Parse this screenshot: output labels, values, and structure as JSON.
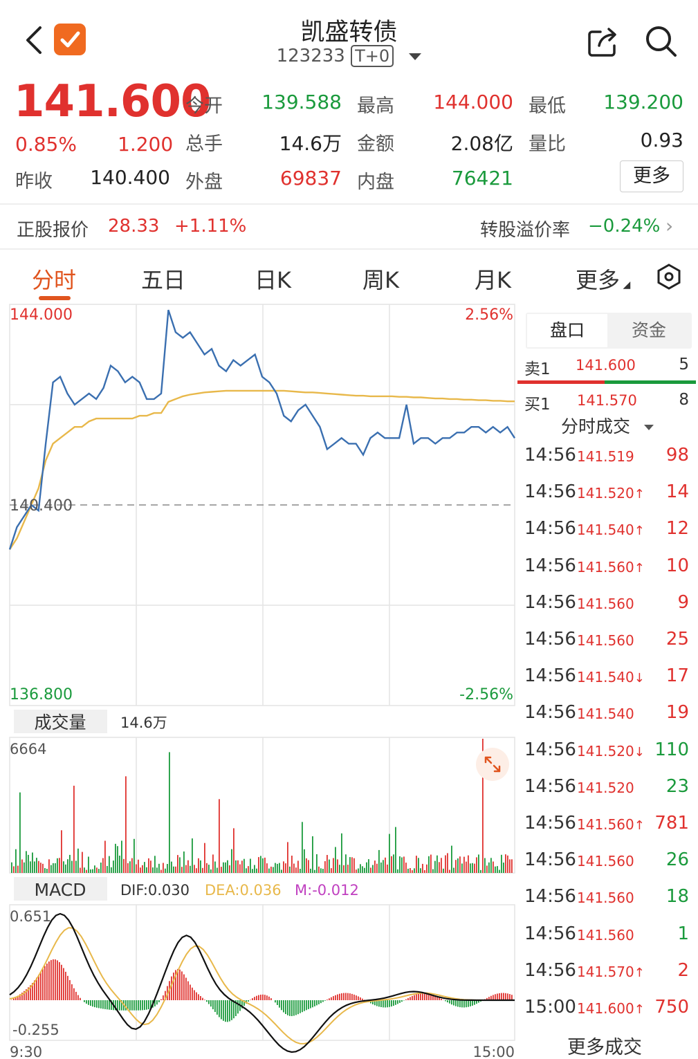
{
  "header": {
    "title": "凯盛转债",
    "code": "123233",
    "trade_mode": "T+0"
  },
  "quote": {
    "price": "141.600",
    "change_pct": "0.85%",
    "change": "1.200",
    "prev_close_label": "昨收",
    "prev_close": "140.400",
    "open_label": "今开",
    "open": "139.588",
    "high_label": "最高",
    "high": "144.000",
    "low_label": "最低",
    "low": "139.200",
    "volume_label": "总手",
    "volume": "14.6万",
    "amount_label": "金额",
    "amount": "2.08亿",
    "vol_ratio_label": "量比",
    "vol_ratio": "0.93",
    "outer_label": "外盘",
    "outer": "69837",
    "inner_label": "内盘",
    "inner": "76421",
    "more_label": "更多"
  },
  "stock_row": {
    "label": "正股报价",
    "price": "28.33",
    "pct": "+1.11%",
    "premium_label": "转股溢价率",
    "premium": "−0.24%"
  },
  "tabs": [
    "分时",
    "五日",
    "日K",
    "周K",
    "月K",
    "更多"
  ],
  "active_tab": 0,
  "chart": {
    "y_max": "144.000",
    "y_min": "136.800",
    "pct_max": "2.56%",
    "pct_min": "-2.56%",
    "ref_price": "140.400",
    "volume_title": "成交量",
    "volume_total": "14.6万",
    "volume_max": "6664",
    "macd_title": "MACD",
    "dif": "DIF:0.030",
    "dea": "DEA:0.036",
    "m": "M:-0.012",
    "macd_max": "0.651",
    "macd_min": "-0.255",
    "time_start": "9:30",
    "time_end": "15:00"
  },
  "chart_data": {
    "type": "line",
    "y_range": [
      136.8,
      144.0
    ],
    "reference": 140.4,
    "series": [
      {
        "values": [
          139.6,
          140.0,
          140.2,
          140.4,
          140.3,
          141.5,
          142.6,
          142.7,
          142.4,
          142.2,
          142.3,
          142.4,
          142.3,
          142.5,
          142.9,
          142.8,
          142.6,
          142.7,
          142.6,
          142.3,
          142.3,
          142.4,
          143.9,
          143.5,
          143.4,
          143.5,
          143.3,
          143.1,
          143.2,
          142.9,
          142.8,
          143.0,
          142.9,
          143.0,
          143.1,
          142.7,
          142.6,
          142.4,
          142.0,
          141.9,
          142.1,
          142.2,
          142.0,
          141.8,
          141.4,
          141.5,
          141.6,
          141.5,
          141.5,
          141.3,
          141.6,
          141.7,
          141.6,
          141.6,
          141.6,
          142.2,
          141.5,
          141.6,
          141.6,
          141.5,
          141.6,
          141.6,
          141.7,
          141.7,
          141.8,
          141.8,
          141.7,
          141.8,
          141.7,
          141.8,
          141.6
        ]
      },
      {
        "values": [
          139.6,
          139.8,
          140.1,
          140.4,
          140.7,
          141.2,
          141.5,
          141.6,
          141.7,
          141.8,
          141.8,
          141.9,
          141.95,
          141.95,
          141.95,
          141.95,
          141.95,
          141.95,
          142.0,
          142.0,
          142.05,
          142.05,
          142.25,
          142.3,
          142.35,
          142.38,
          142.4,
          142.42,
          142.43,
          142.44,
          142.45,
          142.45,
          142.45,
          142.45,
          142.45,
          142.45,
          142.45,
          142.45,
          142.45,
          142.44,
          142.43,
          142.42,
          142.42,
          142.41,
          142.4,
          142.39,
          142.38,
          142.37,
          142.36,
          142.36,
          142.35,
          142.35,
          142.35,
          142.35,
          142.34,
          142.34,
          142.33,
          142.33,
          142.32,
          142.31,
          142.31,
          142.3,
          142.3,
          142.29,
          142.29,
          142.28,
          142.28,
          142.27,
          142.27,
          142.26,
          142.26
        ]
      }
    ]
  },
  "order_book": {
    "tabs": [
      "盘口",
      "资金"
    ],
    "sell_label": "卖1",
    "sell_price": "141.600",
    "sell_vol": "5",
    "buy_label": "买1",
    "buy_price": "141.570",
    "buy_vol": "8"
  },
  "ticks_title": "分时成交",
  "ticks": [
    {
      "time": "14:56",
      "price": "141.519",
      "arrow": "",
      "vol": "98",
      "color": "red"
    },
    {
      "time": "14:56",
      "price": "141.520",
      "arrow": "↑",
      "vol": "14",
      "color": "red"
    },
    {
      "time": "14:56",
      "price": "141.540",
      "arrow": "↑",
      "vol": "12",
      "color": "red"
    },
    {
      "time": "14:56",
      "price": "141.560",
      "arrow": "↑",
      "vol": "10",
      "color": "red"
    },
    {
      "time": "14:56",
      "price": "141.560",
      "arrow": "",
      "vol": "9",
      "color": "red"
    },
    {
      "time": "14:56",
      "price": "141.560",
      "arrow": "",
      "vol": "25",
      "color": "red"
    },
    {
      "time": "14:56",
      "price": "141.540",
      "arrow": "↓",
      "vol": "17",
      "color": "red"
    },
    {
      "time": "14:56",
      "price": "141.540",
      "arrow": "",
      "vol": "19",
      "color": "red"
    },
    {
      "time": "14:56",
      "price": "141.520",
      "arrow": "↓",
      "vol": "110",
      "color": "green"
    },
    {
      "time": "14:56",
      "price": "141.520",
      "arrow": "",
      "vol": "23",
      "color": "green"
    },
    {
      "time": "14:56",
      "price": "141.560",
      "arrow": "↑",
      "vol": "781",
      "color": "red"
    },
    {
      "time": "14:56",
      "price": "141.560",
      "arrow": "",
      "vol": "26",
      "color": "green"
    },
    {
      "time": "14:56",
      "price": "141.560",
      "arrow": "",
      "vol": "18",
      "color": "green"
    },
    {
      "time": "14:56",
      "price": "141.560",
      "arrow": "",
      "vol": "1",
      "color": "green"
    },
    {
      "time": "14:56",
      "price": "141.570",
      "arrow": "↑",
      "vol": "2",
      "color": "red"
    },
    {
      "time": "15:00",
      "price": "141.600",
      "arrow": "↑",
      "vol": "750",
      "color": "red"
    }
  ],
  "more_ticks_label": "更多成交",
  "colors": {
    "up": "#e0312e",
    "down": "#1a9a3c",
    "price_line": "#3a6fb0",
    "avg_line": "#e8b84a",
    "accent": "#e0541e"
  }
}
